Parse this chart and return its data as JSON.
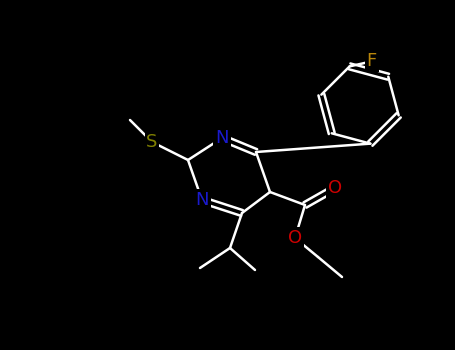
{
  "background": "#000000",
  "bond_color": "#ffffff",
  "atom_label_colors": {
    "S": "#808000",
    "N": "#1a1acd",
    "O": "#cc0000",
    "F": "#b8860b"
  },
  "bond_width": 1.8,
  "font_size": 13,
  "figsize": [
    4.55,
    3.5
  ],
  "dpi": 100
}
